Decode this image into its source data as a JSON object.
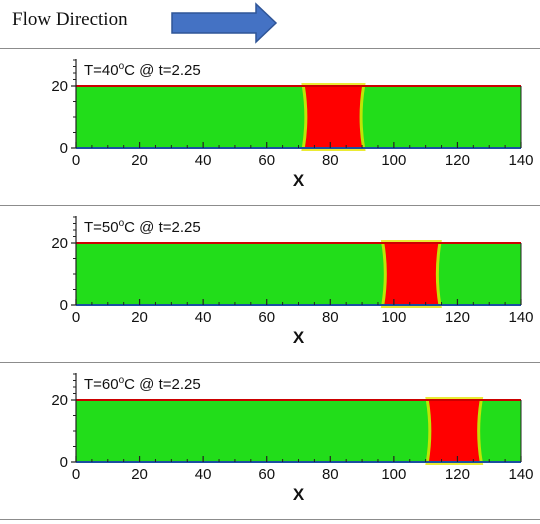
{
  "header": {
    "flow_label": "Flow Direction",
    "arrow_icon": "right-arrow-icon",
    "arrow_color": "#4472c4"
  },
  "axis": {
    "x_label": "X",
    "x_ticks": [
      "0",
      "20",
      "40",
      "60",
      "80",
      "100",
      "120",
      "140"
    ],
    "y_ticks": [
      "0",
      "20"
    ]
  },
  "colors": {
    "background_field": "#22dd1a",
    "droplet": "#ff0000",
    "interface_halo": "#e6e600",
    "top_wall": "#cc0000"
  },
  "panels": [
    {
      "label": "T=40",
      "sup": "o",
      "label_rest": "C @ t=2.25",
      "droplet_x_start": 72,
      "droplet_x_end": 90
    },
    {
      "label": "T=50",
      "sup": "o",
      "label_rest": "C @ t=2.25",
      "droplet_x_start": 97,
      "droplet_x_end": 114
    },
    {
      "label": "T=60",
      "sup": "o",
      "label_rest": "C @ t=2.25",
      "droplet_x_start": 111,
      "droplet_x_end": 127
    }
  ]
}
